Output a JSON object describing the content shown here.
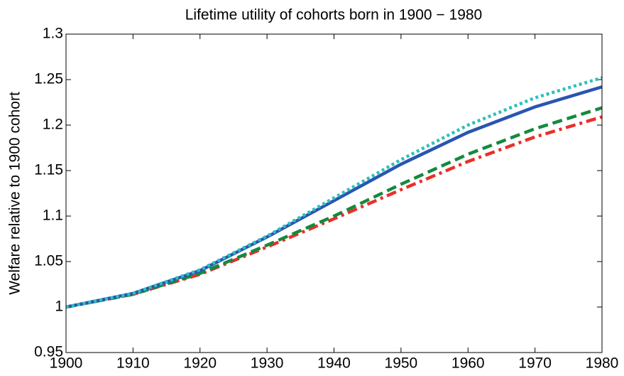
{
  "chart_data": {
    "type": "line",
    "title": "Lifetime utility of cohorts born in 1900 − 1980",
    "ylabel": "Welfare relative to 1900 cohort",
    "x": [
      1900,
      1910,
      1920,
      1930,
      1940,
      1950,
      1960,
      1970,
      1980
    ],
    "series": [
      {
        "color": "#2fbfbf",
        "style": "dotted",
        "values": [
          1.0,
          1.015,
          1.041,
          1.078,
          1.12,
          1.162,
          1.2,
          1.23,
          1.252
        ]
      },
      {
        "color": "#2a55b0",
        "style": "solid",
        "values": [
          1.0,
          1.015,
          1.04,
          1.077,
          1.117,
          1.157,
          1.192,
          1.22,
          1.242
        ]
      },
      {
        "color": "#138a3e",
        "style": "dashed",
        "values": [
          1.0,
          1.014,
          1.037,
          1.068,
          1.1,
          1.135,
          1.168,
          1.196,
          1.219
        ]
      },
      {
        "color": "#e8302a",
        "style": "dashdot",
        "values": [
          1.0,
          1.014,
          1.036,
          1.066,
          1.097,
          1.129,
          1.16,
          1.187,
          1.209
        ]
      }
    ],
    "xlim": [
      1900,
      1980
    ],
    "xticks": [
      1900,
      1910,
      1920,
      1930,
      1940,
      1950,
      1960,
      1970,
      1980
    ],
    "ylim": [
      0.95,
      1.3
    ],
    "yticks": [
      0.95,
      1,
      1.05,
      1.1,
      1.15,
      1.2,
      1.25,
      1.3
    ]
  }
}
